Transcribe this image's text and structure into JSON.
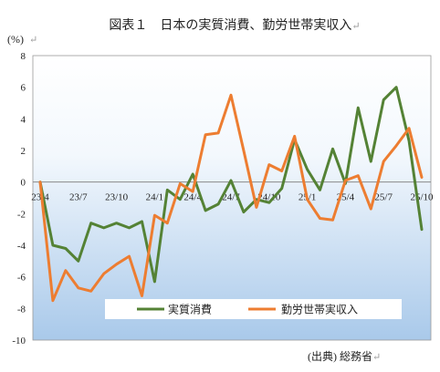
{
  "figure_title": "図表１　日本の実質消費、勤労世帯実収入",
  "title_mark": "↵",
  "unit_label": "(%)",
  "unit_mark": "↵",
  "source_label": "(出典) 総務省",
  "source_mark": "↵",
  "chart_data": {
    "type": "line",
    "title": "図表１　日本の実質消費、勤労世帯実収入",
    "ylabel": "(%)",
    "ylim": [
      -10,
      8
    ],
    "yticks": [
      8,
      6,
      4,
      2,
      0,
      -2,
      -4,
      -6,
      -8,
      -10
    ],
    "grid": false,
    "legend_position": "bottom-center",
    "x": [
      "23/4",
      "23/5",
      "23/6",
      "23/7",
      "23/8",
      "23/9",
      "23/10",
      "23/11",
      "23/12",
      "24/1",
      "24/2",
      "24/3",
      "24/4",
      "24/5",
      "24/6",
      "24/7",
      "24/8",
      "24/9",
      "24/10",
      "24/11",
      "24/12",
      "25/1",
      "25/2",
      "25/3",
      "25/4",
      "25/5",
      "25/6",
      "25/7",
      "25/8",
      "25/9",
      "25/10"
    ],
    "xtick_labels": [
      "23/4",
      "23/7",
      "23/10",
      "24/1",
      "24/4",
      "24/7",
      "24/10",
      "25/1",
      "25/4",
      "25/7",
      "25/10"
    ],
    "series": [
      {
        "name": "実質消費",
        "color": "#548235",
        "values": [
          0.0,
          -4.0,
          -4.2,
          -5.0,
          -2.6,
          -2.9,
          -2.6,
          -2.9,
          -2.5,
          -6.3,
          -0.5,
          -1.1,
          0.5,
          -1.8,
          -1.4,
          0.1,
          -1.9,
          -1.1,
          -1.3,
          -0.4,
          2.7,
          0.8,
          -0.5,
          2.1,
          -0.1,
          4.7,
          1.3,
          5.2,
          6.0,
          2.6,
          -3.0
        ]
      },
      {
        "name": "勤労世帯実収入",
        "color": "#ED7D31",
        "values": [
          0.0,
          -7.5,
          -5.6,
          -6.7,
          -6.9,
          -5.8,
          -5.2,
          -4.7,
          -7.2,
          -2.1,
          -2.6,
          -0.1,
          -0.6,
          3.0,
          3.1,
          5.5,
          2.0,
          -1.6,
          1.1,
          0.7,
          2.9,
          -1.1,
          -2.3,
          -2.4,
          0.1,
          0.4,
          -1.7,
          1.3,
          2.3,
          3.4,
          0.3
        ]
      }
    ]
  }
}
